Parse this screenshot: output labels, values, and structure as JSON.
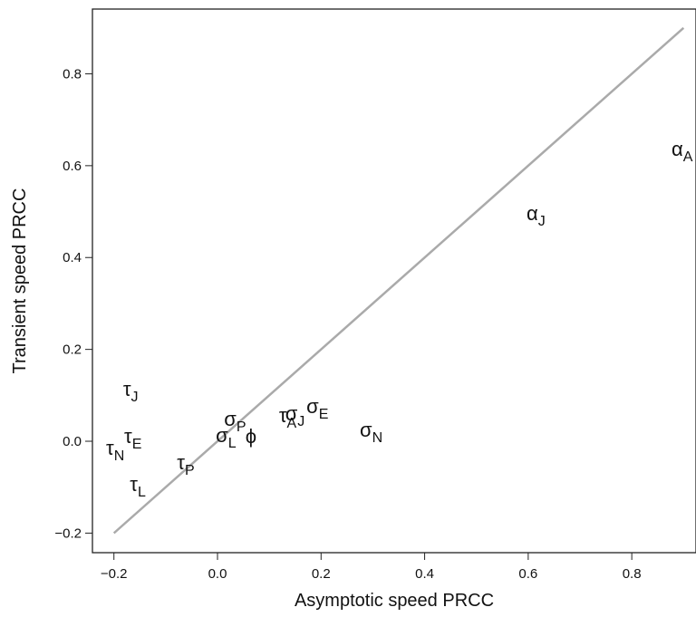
{
  "chart_data": {
    "type": "scatter",
    "x_label": "Asymptotic speed PRCC",
    "y_label": "Transient speed PRCC",
    "x": [
      0.889,
      0.609,
      -0.17,
      -0.203,
      -0.168,
      -0.157,
      -0.066,
      0.025,
      0.009,
      0.066,
      0.131,
      0.143,
      0.184,
      0.287
    ],
    "y": [
      0.635,
      0.495,
      0.112,
      -0.016,
      0.01,
      -0.095,
      -0.047,
      0.047,
      0.012,
      0.01,
      0.055,
      0.059,
      0.075,
      0.024
    ],
    "labels": [
      {
        "symbol": "α",
        "sub": "A"
      },
      {
        "symbol": "α",
        "sub": "J"
      },
      {
        "symbol": "τ",
        "sub": "J"
      },
      {
        "symbol": "τ",
        "sub": "N"
      },
      {
        "symbol": "τ",
        "sub": "E"
      },
      {
        "symbol": "τ",
        "sub": "L"
      },
      {
        "symbol": "τ",
        "sub": "P"
      },
      {
        "symbol": "σ",
        "sub": "P"
      },
      {
        "symbol": "σ",
        "sub": "L"
      },
      {
        "symbol": "ϕ"
      },
      {
        "symbol": "τ",
        "sub": "A"
      },
      {
        "symbol": "σ",
        "sub": "J"
      },
      {
        "symbol": "σ",
        "sub": "E"
      },
      {
        "symbol": "σ",
        "sub": "N"
      }
    ],
    "color": "#111111",
    "reference_line": {
      "x": [
        -0.2,
        0.9
      ],
      "y": [
        -0.2,
        0.9
      ],
      "color": "#aaaaaa"
    },
    "xlim": [
      -0.2415,
      0.924
    ],
    "ylim": [
      -0.2426,
      0.941
    ],
    "xticks": [
      {
        "value": -0.2,
        "label": "−0.2"
      },
      {
        "value": 0,
        "label": "0.0"
      },
      0.2,
      0.4,
      0.6,
      0.8
    ],
    "yticks": [
      {
        "value": -0.2,
        "label": "−0.2"
      },
      {
        "value": 0,
        "label": "0.0"
      },
      0.2,
      0.4,
      0.6,
      0.8
    ]
  }
}
